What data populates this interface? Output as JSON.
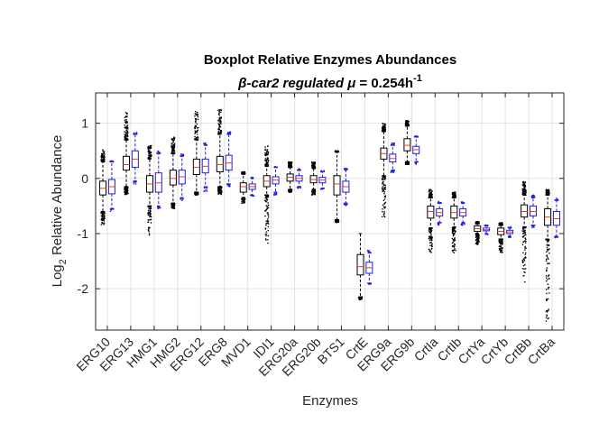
{
  "chart_data": {
    "type": "box",
    "title": "Boxplot Relative Enzymes Abundances",
    "subtitle": {
      "prefix": "β-car2 regulated ",
      "mu": "μ",
      "equals": " = 0.254h",
      "superscript": "-1"
    },
    "xlabel": "Enzymes",
    "ylabel": {
      "prefix": "Log",
      "subscript": "2",
      "suffix": " Relative Abundance"
    },
    "ylim": [
      -2.75,
      1.55
    ],
    "yticks": [
      -2,
      -1,
      0,
      1
    ],
    "ytick_labels": [
      "-2",
      "-1",
      "0",
      "1"
    ],
    "grid": true,
    "series_colors": [
      "#000000",
      "#1f1fe0"
    ],
    "categories": [
      "ERG10",
      "ERG13",
      "HMG1",
      "HMG2",
      "ERG12",
      "ERG8",
      "MVD1",
      "IDI1",
      "ERG20a",
      "ERG20b",
      "BTS1",
      "CrtE",
      "ERG9a",
      "ERG9b",
      "CrtIa",
      "CrtIb",
      "CrtYa",
      "CrtYb",
      "CrtBb",
      "CrtBa"
    ],
    "series": [
      {
        "boxes": [
          {
            "q1": -0.3,
            "med": -0.18,
            "q3": -0.05,
            "wlo": -0.6,
            "whi": 0.3,
            "olo": -0.85,
            "ohi": 0.52
          },
          {
            "q1": 0.15,
            "med": 0.25,
            "q3": 0.4,
            "wlo": -0.15,
            "whi": 0.7,
            "olo": -0.3,
            "ohi": 1.2
          },
          {
            "q1": -0.25,
            "med": -0.1,
            "q3": 0.05,
            "wlo": -0.5,
            "whi": 0.35,
            "olo": -1.05,
            "ohi": 0.6
          },
          {
            "q1": -0.12,
            "med": 0.0,
            "q3": 0.15,
            "wlo": -0.45,
            "whi": 0.45,
            "olo": -0.55,
            "ohi": 0.75
          },
          {
            "q1": 0.07,
            "med": 0.2,
            "q3": 0.35,
            "wlo": -0.25,
            "whi": 0.7,
            "olo": -0.3,
            "ohi": 1.25
          },
          {
            "q1": 0.12,
            "med": 0.25,
            "q3": 0.4,
            "wlo": -0.15,
            "whi": 0.8,
            "olo": -0.3,
            "ohi": 1.25
          },
          {
            "q1": -0.25,
            "med": -0.15,
            "q3": -0.08,
            "wlo": -0.35,
            "whi": 0.08,
            "olo": -0.45,
            "ohi": 0.12
          },
          {
            "q1": -0.15,
            "med": -0.05,
            "q3": 0.05,
            "wlo": -0.3,
            "whi": 0.22,
            "olo": -1.2,
            "ohi": 0.6
          },
          {
            "q1": -0.05,
            "med": 0.02,
            "q3": 0.08,
            "wlo": -0.2,
            "whi": 0.2,
            "olo": -0.25,
            "ohi": 0.3
          },
          {
            "q1": -0.08,
            "med": -0.02,
            "q3": 0.05,
            "wlo": -0.2,
            "whi": 0.18,
            "olo": -0.3,
            "ohi": 0.3
          },
          {
            "q1": -0.3,
            "med": -0.1,
            "q3": 0.05,
            "wlo": -0.75,
            "whi": 0.48,
            "olo": -0.8,
            "ohi": 0.5
          },
          {
            "q1": -1.75,
            "med": -1.6,
            "q3": -1.38,
            "wlo": -2.15,
            "whi": -1.0,
            "olo": -2.2,
            "ohi": -1.0
          },
          {
            "q1": 0.35,
            "med": 0.45,
            "q3": 0.55,
            "wlo": 0.05,
            "whi": 0.85,
            "olo": -0.7,
            "ohi": 1.0
          },
          {
            "q1": 0.5,
            "med": 0.6,
            "q3": 0.72,
            "wlo": 0.3,
            "whi": 0.95,
            "olo": 0.25,
            "ohi": 1.05
          },
          {
            "q1": -0.72,
            "med": -0.6,
            "q3": -0.5,
            "wlo": -0.9,
            "whi": -0.35,
            "olo": -1.35,
            "ohi": -0.2
          },
          {
            "q1": -0.72,
            "med": -0.62,
            "q3": -0.5,
            "wlo": -0.88,
            "whi": -0.35,
            "olo": -1.35,
            "ohi": -0.25
          },
          {
            "q1": -0.96,
            "med": -0.91,
            "q3": -0.86,
            "wlo": -1.0,
            "whi": -0.82,
            "olo": -1.2,
            "ohi": -0.78
          },
          {
            "q1": -1.02,
            "med": -0.96,
            "q3": -0.9,
            "wlo": -1.1,
            "whi": -0.85,
            "olo": -1.35,
            "ohi": -0.8
          },
          {
            "q1": -0.7,
            "med": -0.6,
            "q3": -0.48,
            "wlo": -0.88,
            "whi": -0.3,
            "olo": -1.9,
            "ohi": -0.05
          },
          {
            "q1": -0.85,
            "med": -0.7,
            "q3": -0.55,
            "wlo": -1.1,
            "whi": -0.3,
            "olo": -2.6,
            "ohi": -0.2
          }
        ]
      },
      {
        "boxes": [
          {
            "q1": -0.28,
            "med": -0.15,
            "q3": -0.02,
            "wlo": -0.55,
            "whi": 0.3,
            "olo": -0.6,
            "ohi": 0.35
          },
          {
            "q1": 0.2,
            "med": 0.35,
            "q3": 0.5,
            "wlo": -0.05,
            "whi": 0.8,
            "olo": -0.1,
            "ohi": 0.85
          },
          {
            "q1": -0.25,
            "med": -0.08,
            "q3": 0.1,
            "wlo": -0.5,
            "whi": 0.45,
            "olo": -0.55,
            "ohi": 0.5
          },
          {
            "q1": -0.1,
            "med": 0.03,
            "q3": 0.15,
            "wlo": -0.35,
            "whi": 0.4,
            "olo": -0.4,
            "ohi": 0.45
          },
          {
            "q1": 0.1,
            "med": 0.22,
            "q3": 0.35,
            "wlo": -0.15,
            "whi": 0.6,
            "olo": -0.25,
            "ohi": 0.65
          },
          {
            "q1": 0.15,
            "med": 0.28,
            "q3": 0.42,
            "wlo": -0.1,
            "whi": 0.8,
            "olo": -0.15,
            "ohi": 0.85
          },
          {
            "q1": -0.2,
            "med": -0.15,
            "q3": -0.1,
            "wlo": -0.3,
            "whi": 0.0,
            "olo": -0.32,
            "ohi": 0.02
          },
          {
            "q1": -0.1,
            "med": -0.03,
            "q3": 0.03,
            "wlo": -0.25,
            "whi": 0.2,
            "olo": -0.3,
            "ohi": 0.22
          },
          {
            "q1": -0.05,
            "med": 0.0,
            "q3": 0.05,
            "wlo": -0.15,
            "whi": 0.15,
            "olo": -0.18,
            "ohi": 0.18
          },
          {
            "q1": -0.08,
            "med": -0.03,
            "q3": 0.02,
            "wlo": -0.18,
            "whi": 0.12,
            "olo": -0.2,
            "ohi": 0.15
          },
          {
            "q1": -0.25,
            "med": -0.15,
            "q3": -0.05,
            "wlo": -0.45,
            "whi": 0.15,
            "olo": -0.5,
            "ohi": 0.18
          },
          {
            "q1": -1.72,
            "med": -1.62,
            "q3": -1.52,
            "wlo": -1.9,
            "whi": -1.35,
            "olo": -1.95,
            "ohi": -1.3
          },
          {
            "q1": 0.3,
            "med": 0.36,
            "q3": 0.44,
            "wlo": 0.15,
            "whi": 0.6,
            "olo": 0.1,
            "ohi": 0.65
          },
          {
            "q1": 0.45,
            "med": 0.52,
            "q3": 0.58,
            "wlo": 0.3,
            "whi": 0.75,
            "olo": 0.25,
            "ohi": 0.78
          },
          {
            "q1": -0.68,
            "med": -0.62,
            "q3": -0.55,
            "wlo": -0.8,
            "whi": -0.45,
            "olo": -0.85,
            "ohi": -0.42
          },
          {
            "q1": -0.68,
            "med": -0.62,
            "q3": -0.55,
            "wlo": -0.8,
            "whi": -0.45,
            "olo": -0.85,
            "ohi": -0.42
          },
          {
            "q1": -0.95,
            "med": -0.93,
            "q3": -0.9,
            "wlo": -1.0,
            "whi": -0.86,
            "olo": -1.02,
            "ohi": -0.84
          },
          {
            "q1": -1.0,
            "med": -0.97,
            "q3": -0.94,
            "wlo": -1.05,
            "whi": -0.9,
            "olo": -1.07,
            "ohi": -0.88
          },
          {
            "q1": -0.68,
            "med": -0.6,
            "q3": -0.5,
            "wlo": -0.85,
            "whi": -0.35,
            "olo": -0.9,
            "ohi": -0.3
          },
          {
            "q1": -0.85,
            "med": -0.73,
            "q3": -0.6,
            "wlo": -1.05,
            "whi": -0.4,
            "olo": -1.1,
            "ohi": -0.35
          }
        ]
      }
    ]
  }
}
